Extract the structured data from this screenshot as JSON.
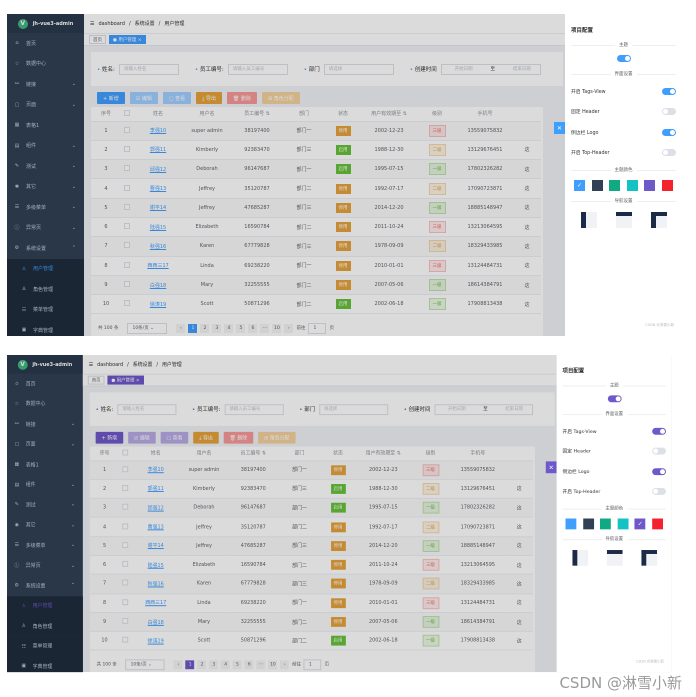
{
  "app": {
    "title": "jh-vue3-admin",
    "logo_letter": "V"
  },
  "breadcrumb": [
    "dashboard",
    "系统设置",
    "用户管理"
  ],
  "tags": [
    {
      "label": "首页"
    },
    {
      "label": "● 用户管理 ×"
    }
  ],
  "sidebar": [
    {
      "label": "首页",
      "icon": "⌂"
    },
    {
      "label": "数据中心",
      "icon": "☆"
    },
    {
      "label": "链接",
      "icon": "⚯",
      "chev": "⌄"
    },
    {
      "label": "页面",
      "icon": "▢",
      "chev": "⌄"
    },
    {
      "label": "表格1",
      "icon": "▦"
    },
    {
      "label": "组件",
      "icon": "▤",
      "chev": "⌄"
    },
    {
      "label": "测试",
      "icon": "✎",
      "chev": "⌄"
    },
    {
      "label": "其它",
      "icon": "✱",
      "chev": "⌄"
    },
    {
      "label": "多级菜单",
      "icon": "☰",
      "chev": "⌄"
    },
    {
      "label": "异常页",
      "icon": "ⓘ",
      "chev": "⌄"
    },
    {
      "label": "系统设置",
      "icon": "⚙",
      "chev": "⌃"
    },
    {
      "label": "用户管理",
      "icon": "♙",
      "sub": true,
      "active": true
    },
    {
      "label": "角色管理",
      "icon": "♙",
      "sub": true
    },
    {
      "label": "菜单管理",
      "icon": "☷",
      "sub": true
    },
    {
      "label": "字典管理",
      "icon": "▣",
      "sub": true
    }
  ],
  "search": {
    "name_label": "姓名:",
    "name_placeholder": "请输入姓名",
    "id_label": "员工编号:",
    "id_placeholder": "请输入员工编号",
    "dept_label": "部门",
    "dept_placeholder": "请选择",
    "time_label": "创建时间",
    "start_placeholder": "开始日期",
    "to": "至",
    "end_placeholder": "结束日期"
  },
  "toolbar": [
    {
      "label": "+ 新增",
      "color": "primary"
    },
    {
      "label": "☑ 编辑",
      "color": "primary-light"
    },
    {
      "label": "▢ 查看",
      "color": "primary-light"
    },
    {
      "label": "⤓ 导出",
      "color": "#e6a23c"
    },
    {
      "label": "🗑 删除",
      "color": "#f89898"
    },
    {
      "label": "⊞ 角色分配",
      "color": "#f3d19e"
    }
  ],
  "table": {
    "headers": [
      "序号",
      "",
      "姓名",
      "用户名",
      "员工编号 ⇅",
      "部门",
      "状态",
      "用户有效期至 ⇅",
      "级别",
      "手机号",
      ""
    ],
    "rows": [
      {
        "no": "1",
        "name": "李强10",
        "user": "super admin",
        "id": "38197400",
        "dept": "部门一",
        "status": "停用",
        "date": "2002-12-23",
        "level": "三级",
        "phone": "13559075832",
        "extra": ""
      },
      {
        "no": "2",
        "name": "郭强11",
        "user": "Kimberly",
        "id": "92383470",
        "dept": "部门三",
        "status": "启用",
        "date": "1988-12-30",
        "level": "二级",
        "phone": "13129676451",
        "extra": "这"
      },
      {
        "no": "3",
        "name": "邱强12",
        "user": "Deborah",
        "id": "96147687",
        "dept": "部门一",
        "status": "启用",
        "date": "1995-07-15",
        "level": "一级",
        "phone": "17802326282",
        "extra": "这"
      },
      {
        "no": "4",
        "name": "曹强13",
        "user": "Jeffrey",
        "id": "35120787",
        "dept": "部门二",
        "status": "停用",
        "date": "1992-07-17",
        "level": "二级",
        "phone": "17090723871",
        "extra": "这"
      },
      {
        "no": "5",
        "name": "谢平14",
        "user": "Jeffrey",
        "id": "47685287",
        "dept": "部门三",
        "status": "停用",
        "date": "2014-12-20",
        "level": "一级",
        "phone": "18885148947",
        "extra": "这"
      },
      {
        "no": "6",
        "name": "陆强15",
        "user": "Elizabeth",
        "id": "16590784",
        "dept": "部门二",
        "status": "停用",
        "date": "2011-10-24",
        "level": "三级",
        "phone": "13213064595",
        "extra": "这"
      },
      {
        "no": "7",
        "name": "秋强16",
        "user": "Karen",
        "id": "67779828",
        "dept": "部门三",
        "status": "停用",
        "date": "1978-09-09",
        "level": "二级",
        "phone": "18329433985",
        "extra": "这"
      },
      {
        "no": "8",
        "name": "西西三17",
        "user": "Linda",
        "id": "69238220",
        "dept": "部门一",
        "status": "停用",
        "date": "2010-01-01",
        "level": "三级",
        "phone": "13124484731",
        "extra": "这"
      },
      {
        "no": "9",
        "name": "白强18",
        "user": "Mary",
        "id": "32255555",
        "dept": "部门二",
        "status": "停用",
        "date": "2007-05-06",
        "level": "一级",
        "phone": "18614384791",
        "extra": "这"
      },
      {
        "no": "10",
        "name": "徐涛19",
        "user": "Scott",
        "id": "50871296",
        "dept": "部门二",
        "status": "启用",
        "date": "2002-06-18",
        "level": "一级",
        "phone": "17908813438",
        "extra": "这"
      }
    ]
  },
  "pagination": {
    "total": "共 100 条",
    "size": "10条/页 ⌄",
    "prev": "‹",
    "pages": [
      "1",
      "2",
      "3",
      "4",
      "5",
      "6",
      "···",
      "10"
    ],
    "next": "›",
    "goto": "前往",
    "page_input": "1",
    "page_unit": "页"
  },
  "drawer": {
    "title": "项目配置",
    "theme_section": "主题",
    "ui_section": "界面设置",
    "toggles": [
      {
        "label": "开启 Tags-View",
        "on": true
      },
      {
        "label": "固定 Header",
        "on": false
      },
      {
        "label": "侧边栏 Logo",
        "on": true
      },
      {
        "label": "开启 Top-Header",
        "on": false
      }
    ],
    "color_section": "主题颜色",
    "colors": [
      "#409eff",
      "#304156",
      "#11a983",
      "#13c2c2",
      "#6f58c9",
      "#f5222d"
    ],
    "nav_section": "导航设置",
    "footer": "CSDN @淋雪小新",
    "close": "✕"
  },
  "screens": [
    {
      "primary": "#409eff",
      "selected_color": 0
    },
    {
      "primary": "#6f58c9",
      "selected_color": 4
    }
  ],
  "status_colors": {
    "停用": "#e6a23c",
    "启用": "#67c23a"
  },
  "level_colors": {
    "一级": "#67c23a",
    "二级": "#e6a23c",
    "三级": "#f56c6c"
  },
  "watermark": "CSDN @淋雪小新"
}
